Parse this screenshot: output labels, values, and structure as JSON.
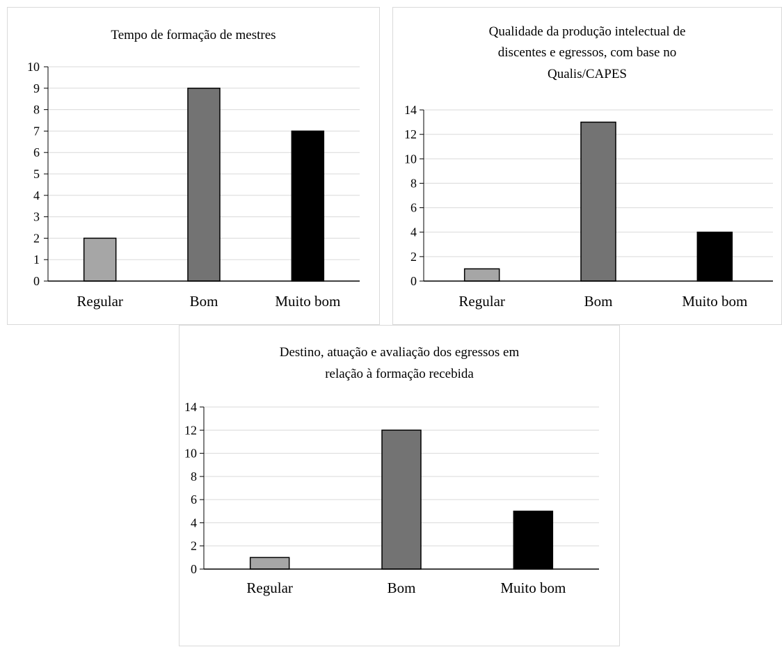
{
  "chart_data": [
    {
      "type": "bar",
      "title": [
        "Tempo de formação de mestres"
      ],
      "categories": [
        "Regular",
        "Bom",
        "Muito bom"
      ],
      "values": [
        2,
        9,
        7
      ],
      "ylim": [
        0,
        10
      ],
      "yticks": [
        0,
        1,
        2,
        3,
        4,
        5,
        6,
        7,
        8,
        9,
        10
      ],
      "grid": true,
      "bar_colors": [
        "#a6a6a6",
        "#737373",
        "#000000"
      ]
    },
    {
      "type": "bar",
      "title": [
        "Qualidade da produção intelectual de",
        "discentes e egressos, com base no",
        "Qualis/CAPES"
      ],
      "categories": [
        "Regular",
        "Bom",
        "Muito bom"
      ],
      "values": [
        1,
        13,
        4
      ],
      "ylim": [
        0,
        14
      ],
      "yticks": [
        0,
        2,
        4,
        6,
        8,
        10,
        12,
        14
      ],
      "grid": true,
      "bar_colors": [
        "#a6a6a6",
        "#737373",
        "#000000"
      ]
    },
    {
      "type": "bar",
      "title": [
        "Destino, atuação e avaliação dos egressos em",
        "relação à formação recebida"
      ],
      "categories": [
        "Regular",
        "Bom",
        "Muito bom"
      ],
      "values": [
        1,
        12,
        5
      ],
      "ylim": [
        0,
        14
      ],
      "yticks": [
        0,
        2,
        4,
        6,
        8,
        10,
        12,
        14
      ],
      "grid": true,
      "bar_colors": [
        "#a6a6a6",
        "#737373",
        "#000000"
      ]
    }
  ]
}
